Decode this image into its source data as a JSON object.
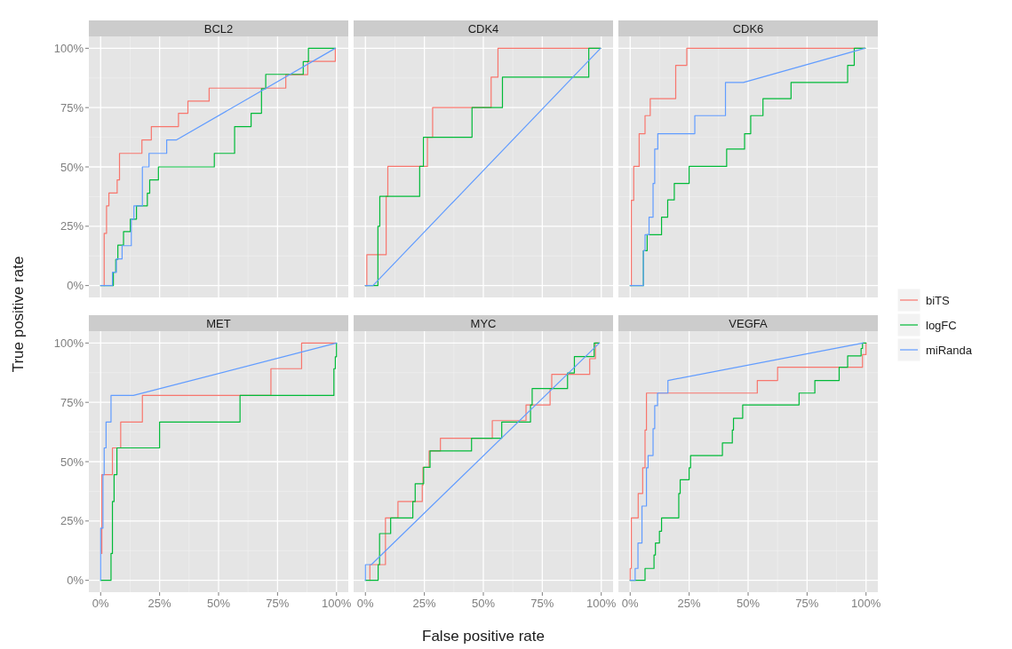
{
  "chart_data": [
    {
      "type": "line",
      "title": "BCL2",
      "xlim": [
        -5,
        105
      ],
      "ylim": [
        -5,
        105
      ],
      "xticks": [
        {
          "value": 0,
          "label": null
        },
        {
          "value": 25,
          "label": null
        },
        {
          "value": 50,
          "label": null
        },
        {
          "value": 75,
          "label": null
        },
        {
          "value": 100,
          "label": null
        }
      ],
      "yticks": [
        {
          "value": 0,
          "label": "0%"
        },
        {
          "value": 25,
          "label": "25%"
        },
        {
          "value": 50,
          "label": "50%"
        },
        {
          "value": 75,
          "label": "75%"
        },
        {
          "value": 100,
          "label": "100%"
        }
      ],
      "grid": true,
      "tick_labels": "y",
      "legend": "right",
      "series": [
        {
          "name": "biTS",
          "color": "#f8766d",
          "x": [
            1.5,
            1.5,
            2.5,
            2.5,
            3.5,
            3.5,
            7,
            7,
            8,
            8,
            17.5,
            17.5,
            21.5,
            21.5,
            33,
            33,
            37,
            37,
            46,
            46,
            78.5,
            78.5,
            87.8,
            87.8,
            99.5,
            99.5
          ],
          "values": [
            0,
            22,
            22,
            33.6,
            33.6,
            39,
            39,
            44.5,
            44.5,
            55.7,
            55.7,
            61.4,
            61.4,
            67,
            67,
            72.6,
            72.6,
            77.7,
            77.7,
            83.2,
            83.2,
            88.9,
            88.9,
            94.5,
            94.5,
            100
          ]
        },
        {
          "name": "logFC",
          "color": "#00ba38",
          "x": [
            0,
            5.4,
            5.4,
            6.4,
            6.4,
            7.3,
            7.3,
            9.7,
            9.7,
            12.6,
            12.6,
            15.2,
            15.2,
            19.8,
            19.8,
            20.8,
            20.8,
            24.5,
            24.5,
            48.2,
            48.2,
            56.8,
            56.8,
            63.8,
            63.8,
            68.2,
            68.2,
            70,
            70,
            85.9,
            85.9,
            88.1,
            88.1,
            99.5
          ],
          "values": [
            0,
            0,
            5.6,
            5.6,
            11,
            11,
            17,
            17,
            22.7,
            22.7,
            28,
            28,
            33.6,
            33.6,
            38.9,
            38.9,
            44.5,
            44.5,
            50,
            50,
            55.7,
            55.7,
            67,
            67,
            72.6,
            72.6,
            83,
            83,
            89,
            89,
            94.4,
            94.4,
            100,
            100
          ]
        },
        {
          "name": "miRanda",
          "color": "#619cff",
          "x": [
            0,
            5,
            5,
            6.7,
            6.7,
            9.1,
            9.1,
            13,
            13,
            14.1,
            14.1,
            17.7,
            17.7,
            20.5,
            20.5,
            28,
            28,
            32.2,
            99.5
          ],
          "values": [
            0,
            0,
            5.6,
            5.6,
            11.2,
            11.2,
            16.8,
            16.8,
            28,
            28,
            33.6,
            33.6,
            50,
            50,
            55.7,
            55.7,
            61.4,
            61.4,
            100
          ]
        }
      ]
    },
    {
      "type": "line",
      "title": "CDK4",
      "xlim": [
        -5,
        105
      ],
      "ylim": [
        -5,
        105
      ],
      "xticks": [
        {
          "value": 0,
          "label": null
        },
        {
          "value": 25,
          "label": null
        },
        {
          "value": 50,
          "label": null
        },
        {
          "value": 75,
          "label": null
        },
        {
          "value": 100,
          "label": null
        }
      ],
      "yticks": [
        {
          "value": 0,
          "label": null
        },
        {
          "value": 25,
          "label": null
        },
        {
          "value": 50,
          "label": null
        },
        {
          "value": 75,
          "label": null
        },
        {
          "value": 100,
          "label": null
        }
      ],
      "grid": true,
      "tick_labels": false,
      "series": [
        {
          "color": "#f8766d",
          "x": [
            0,
            0.6,
            0.6,
            8.8,
            8.8,
            9.5,
            9.5,
            26.3,
            26.3,
            28.5,
            28.5,
            53.3,
            53.3,
            56.2,
            56.2,
            99.7
          ],
          "values": [
            0,
            0,
            13,
            13,
            37.6,
            37.6,
            50.2,
            50.2,
            62.5,
            62.5,
            75,
            75,
            87.8,
            87.8,
            100,
            100
          ]
        },
        {
          "color": "#00ba38",
          "x": [
            0,
            5.3,
            5.3,
            6.1,
            6.1,
            23,
            23,
            24.6,
            24.6,
            45.2,
            45.2,
            58.1,
            58.1,
            94.7,
            94.7,
            99.7
          ],
          "values": [
            0,
            0,
            25,
            25,
            37.6,
            37.6,
            50.2,
            50.2,
            62.5,
            62.5,
            75,
            75,
            87.8,
            87.8,
            100,
            100
          ]
        },
        {
          "color": "#619cff",
          "x": [
            0,
            3.2,
            99.7
          ],
          "values": [
            0,
            0,
            100
          ]
        }
      ]
    },
    {
      "type": "line",
      "title": "CDK6",
      "xlim": [
        -5,
        105
      ],
      "ylim": [
        -5,
        105
      ],
      "xticks": [
        {
          "value": 0,
          "label": null
        },
        {
          "value": 25,
          "label": null
        },
        {
          "value": 50,
          "label": null
        },
        {
          "value": 75,
          "label": null
        },
        {
          "value": 100,
          "label": null
        }
      ],
      "yticks": [
        {
          "value": 0,
          "label": null
        },
        {
          "value": 25,
          "label": null
        },
        {
          "value": 50,
          "label": null
        },
        {
          "value": 75,
          "label": null
        },
        {
          "value": 100,
          "label": null
        }
      ],
      "grid": true,
      "tick_labels": false,
      "series": [
        {
          "color": "#f8766d",
          "x": [
            0.5,
            0.5,
            1.5,
            1.5,
            3.8,
            3.8,
            6.3,
            6.3,
            8.5,
            8.5,
            19.3,
            19.3,
            24,
            24,
            99.5
          ],
          "values": [
            0,
            35.9,
            35.9,
            50.2,
            50.2,
            64,
            64,
            71.6,
            71.6,
            78.8,
            78.8,
            92.8,
            92.8,
            100,
            100
          ]
        },
        {
          "color": "#00ba38",
          "x": [
            0,
            5.6,
            5.6,
            7.2,
            7.2,
            13.3,
            13.3,
            15.9,
            15.9,
            18.7,
            18.7,
            25,
            25,
            40.9,
            40.9,
            48.5,
            48.5,
            51.1,
            51.1,
            56.3,
            56.3,
            68.2,
            68.2,
            92.2,
            92.2,
            95,
            95,
            99.7
          ],
          "values": [
            0,
            0,
            14.7,
            14.7,
            21.4,
            21.4,
            28.8,
            28.8,
            36.1,
            36.1,
            43,
            43,
            50.2,
            50.2,
            57.5,
            57.5,
            64,
            64,
            71.6,
            71.6,
            78.8,
            78.8,
            85.6,
            85.6,
            92.8,
            92.8,
            100,
            100
          ]
        },
        {
          "color": "#619cff",
          "x": [
            0,
            5.6,
            5.6,
            6.3,
            6.3,
            8,
            8,
            9.7,
            9.7,
            10.4,
            10.4,
            11.7,
            11.7,
            27.4,
            27.4,
            40.4,
            40.4,
            48,
            99.5
          ],
          "values": [
            0,
            0,
            14.7,
            14.7,
            21.4,
            21.4,
            28.8,
            28.8,
            43,
            43,
            57.5,
            57.5,
            64,
            64,
            71.6,
            71.6,
            85.6,
            85.6,
            100
          ]
        }
      ]
    },
    {
      "type": "line",
      "title": "MET",
      "xlim": [
        -5,
        105
      ],
      "ylim": [
        -5,
        105
      ],
      "xticks": [
        {
          "value": 0,
          "label": "0%"
        },
        {
          "value": 25,
          "label": "25%"
        },
        {
          "value": 50,
          "label": "50%"
        },
        {
          "value": 75,
          "label": "75%"
        },
        {
          "value": 100,
          "label": "100%"
        }
      ],
      "yticks": [
        {
          "value": 0,
          "label": "0%"
        },
        {
          "value": 25,
          "label": "25%"
        },
        {
          "value": 50,
          "label": "50%"
        },
        {
          "value": 75,
          "label": "75%"
        },
        {
          "value": 100,
          "label": "100%"
        }
      ],
      "grid": true,
      "ylabel": "True positive rate",
      "series": [
        {
          "color": "#f8766d",
          "x": [
            0.5,
            0.5,
            5,
            5,
            8.5,
            8.5,
            17.7,
            17.7,
            72.2,
            72.2,
            85.2,
            85.2,
            99.7
          ],
          "values": [
            11.3,
            44.5,
            44.5,
            55.8,
            55.8,
            66.7,
            66.7,
            77.9,
            77.9,
            89.2,
            89.2,
            100,
            100
          ]
        },
        {
          "color": "#00ba38",
          "x": [
            0,
            4.4,
            4.4,
            5,
            5,
            5.7,
            5.7,
            6.9,
            6.9,
            25,
            25,
            59.1,
            59.1,
            98.9,
            98.9,
            99.5,
            99.5,
            100,
            100
          ],
          "values": [
            0,
            0,
            11.3,
            11.3,
            33.2,
            33.2,
            44.5,
            44.5,
            55.8,
            55.8,
            66.7,
            66.7,
            77.9,
            77.9,
            89.2,
            89.2,
            94.2,
            94.2,
            100
          ]
        },
        {
          "color": "#619cff",
          "x": [
            0,
            0,
            1,
            1,
            1.5,
            1.5,
            2.3,
            2.3,
            4.4,
            4.4,
            13.9,
            100
          ],
          "values": [
            0,
            22,
            22,
            44.5,
            44.5,
            55.8,
            55.8,
            66.7,
            66.7,
            77.9,
            77.9,
            100
          ]
        }
      ]
    },
    {
      "type": "line",
      "title": "MYC",
      "xlim": [
        -5,
        105
      ],
      "ylim": [
        -5,
        105
      ],
      "xticks": [
        {
          "value": 0,
          "label": "0%"
        },
        {
          "value": 25,
          "label": "25%"
        },
        {
          "value": 50,
          "label": "50%"
        },
        {
          "value": 75,
          "label": "75%"
        },
        {
          "value": 100,
          "label": "100%"
        }
      ],
      "yticks": [
        {
          "value": 0,
          "label": null
        },
        {
          "value": 25,
          "label": null
        },
        {
          "value": 50,
          "label": null
        },
        {
          "value": 75,
          "label": null
        },
        {
          "value": 100,
          "label": null
        }
      ],
      "grid": true,
      "tick_labels": "x",
      "xlabel": "False positive rate",
      "series": [
        {
          "color": "#f8766d",
          "x": [
            1.9,
            1.9,
            8.5,
            8.5,
            13.8,
            13.8,
            24.1,
            24.1,
            24.4,
            24.4,
            27,
            27,
            31.8,
            31.8,
            53.8,
            53.8,
            68.1,
            68.1,
            78.3,
            78.3,
            79,
            79,
            95.1,
            95.1,
            97.5,
            97.5,
            99.2
          ],
          "values": [
            0,
            6.6,
            6.6,
            26.3,
            26.3,
            33.2,
            33.2,
            40.1,
            40.1,
            47.6,
            47.6,
            54.5,
            54.5,
            59.9,
            59.9,
            67.3,
            67.3,
            73.9,
            73.9,
            80.8,
            80.8,
            86.8,
            86.8,
            93.4,
            93.4,
            100,
            100
          ]
        },
        {
          "color": "#00ba38",
          "x": [
            0,
            5.4,
            5.4,
            6,
            6,
            10.7,
            10.7,
            20.1,
            20.1,
            21.1,
            21.1,
            24.7,
            24.7,
            27.4,
            27.4,
            45,
            45,
            57.8,
            57.8,
            70,
            70,
            70.7,
            70.7,
            85.7,
            85.7,
            88.6,
            88.6,
            97,
            97,
            99.2
          ],
          "values": [
            0,
            0,
            6.6,
            6.6,
            19.7,
            19.7,
            26.3,
            26.3,
            33.2,
            33.2,
            40.7,
            40.7,
            47.6,
            47.6,
            54.5,
            54.5,
            59.9,
            59.9,
            66.7,
            66.7,
            73.9,
            73.9,
            80.8,
            80.8,
            87.4,
            87.4,
            94.3,
            94.3,
            100,
            100
          ]
        },
        {
          "color": "#619cff",
          "x": [
            0,
            0,
            2.5,
            99.2
          ],
          "values": [
            0,
            6.6,
            6.6,
            100
          ]
        }
      ]
    },
    {
      "type": "line",
      "title": "VEGFA",
      "xlim": [
        -5,
        105
      ],
      "ylim": [
        -5,
        105
      ],
      "xticks": [
        {
          "value": 0,
          "label": "0%"
        },
        {
          "value": 25,
          "label": "25%"
        },
        {
          "value": 50,
          "label": "50%"
        },
        {
          "value": 75,
          "label": "75%"
        },
        {
          "value": 100,
          "label": "100%"
        }
      ],
      "yticks": [
        {
          "value": 0,
          "label": null
        },
        {
          "value": 25,
          "label": null
        },
        {
          "value": 50,
          "label": null
        },
        {
          "value": 75,
          "label": null
        },
        {
          "value": 100,
          "label": null
        }
      ],
      "grid": true,
      "tick_labels": "x",
      "series": [
        {
          "color": "#f8766d",
          "x": [
            0,
            0,
            0.5,
            0.5,
            3.4,
            3.4,
            5.3,
            5.3,
            6.3,
            6.3,
            6.9,
            6.9,
            53.9,
            53.9,
            62.5,
            62.5,
            98.5,
            98.5,
            100,
            100
          ],
          "values": [
            0,
            5,
            5,
            26.3,
            26.3,
            36.6,
            36.6,
            47.4,
            47.4,
            63.3,
            63.3,
            78.9,
            78.9,
            84.2,
            84.2,
            89.8,
            89.8,
            95.1,
            95.1,
            100
          ]
        },
        {
          "color": "#00ba38",
          "x": [
            0,
            6.3,
            6.3,
            10.1,
            10.1,
            10.7,
            10.7,
            12.4,
            12.4,
            13.3,
            13.3,
            20.6,
            20.6,
            21.2,
            21.2,
            25,
            25,
            25.6,
            25.6,
            39.1,
            39.1,
            43.3,
            43.3,
            43.8,
            43.8,
            47.7,
            47.7,
            71.6,
            71.6,
            78.3,
            78.3,
            88.6,
            88.6,
            92.2,
            92.2,
            97.9,
            97.9,
            98.5,
            98.5,
            100
          ],
          "values": [
            0,
            0,
            5,
            5,
            10.7,
            10.7,
            15.7,
            15.7,
            20.7,
            20.7,
            26.3,
            26.3,
            36.6,
            36.6,
            42.4,
            42.4,
            47.4,
            47.4,
            52.6,
            52.6,
            57.9,
            57.9,
            63.3,
            63.3,
            68.3,
            68.3,
            73.9,
            73.9,
            78.9,
            78.9,
            84.2,
            84.2,
            89.8,
            89.8,
            94.6,
            94.6,
            97.7,
            97.7,
            100,
            100
          ]
        },
        {
          "color": "#619cff",
          "x": [
            0,
            2.1,
            2.1,
            3.3,
            3.3,
            5,
            5,
            6.9,
            6.9,
            7.6,
            7.6,
            9.7,
            9.7,
            10.4,
            10.4,
            11.6,
            11.6,
            16,
            16,
            98.7
          ],
          "values": [
            0,
            0,
            5,
            5,
            15.7,
            15.7,
            31.3,
            31.3,
            47.4,
            47.4,
            52.6,
            52.6,
            63.9,
            63.9,
            73.6,
            73.6,
            78.9,
            78.9,
            84.2,
            100
          ]
        }
      ]
    }
  ]
}
